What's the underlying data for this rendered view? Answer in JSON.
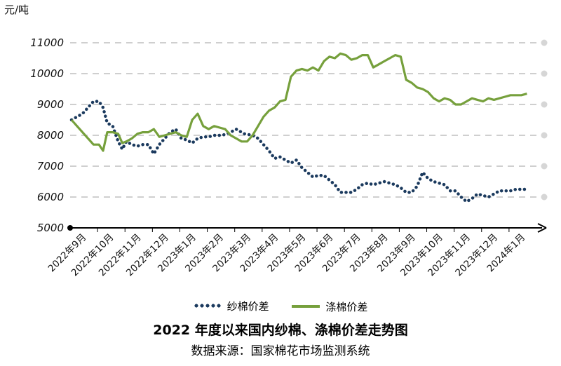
{
  "chart_data": {
    "type": "line",
    "title": "2022 年度以来国内纱棉、涤棉价差走势图",
    "source": "数据来源：国家棉花市场监测系统",
    "ylabel": "元/吨",
    "ylim": [
      5000,
      11000
    ],
    "yticks": [
      5000,
      6000,
      7000,
      8000,
      9000,
      10000,
      11000
    ],
    "grid": true,
    "legend_position": "bottom",
    "categories": [
      "2022年9月",
      "2022年10月",
      "2022年11月",
      "2022年12月",
      "2023年1月",
      "2023年2月",
      "2023年3月",
      "2023年4月",
      "2023年5月",
      "2023年6月",
      "2023年7月",
      "2023年8月",
      "2023年9月",
      "2023年10月",
      "2023年11月",
      "2023年12月",
      "2024年1月"
    ],
    "series": [
      {
        "name": "纱棉价差",
        "style": "dotted",
        "color": "#1b3a5e",
        "x": [
          0.0,
          0.2,
          0.4,
          0.6,
          0.8,
          1.0,
          1.15,
          1.3,
          1.5,
          1.7,
          1.85,
          2.0,
          2.2,
          2.4,
          2.6,
          2.8,
          3.0,
          3.2,
          3.4,
          3.6,
          3.8,
          4.0,
          4.2,
          4.4,
          4.6,
          4.8,
          5.0,
          5.2,
          5.5,
          5.8,
          6.0,
          6.3,
          6.6,
          6.8,
          7.0,
          7.2,
          7.4,
          7.6,
          7.8,
          8.0,
          8.2,
          8.4,
          8.6,
          8.8,
          9.0,
          9.2,
          9.4,
          9.6,
          9.8,
          10.0,
          10.2,
          10.4,
          10.6,
          10.8,
          11.0,
          11.2,
          11.4,
          11.6,
          11.8,
          12.0,
          12.2,
          12.4,
          12.6,
          12.8,
          13.0,
          13.2,
          13.4,
          13.6,
          13.8,
          14.0,
          14.2,
          14.4,
          14.6,
          14.8,
          15.0,
          15.2,
          15.4,
          15.6,
          15.8,
          16.0,
          16.2,
          16.4,
          16.6
        ],
        "values": [
          8500,
          8600,
          8700,
          8900,
          9100,
          9100,
          8900,
          8400,
          8300,
          7800,
          7550,
          7800,
          7700,
          7650,
          7700,
          7700,
          7400,
          7700,
          7900,
          8100,
          8200,
          7900,
          7850,
          7750,
          7900,
          7950,
          7950,
          8000,
          8000,
          8100,
          8200,
          8050,
          8000,
          7900,
          7700,
          7500,
          7250,
          7300,
          7200,
          7100,
          7200,
          6950,
          6800,
          6650,
          6700,
          6700,
          6550,
          6400,
          6150,
          6150,
          6150,
          6250,
          6400,
          6450,
          6400,
          6450,
          6500,
          6450,
          6400,
          6300,
          6150,
          6150,
          6350,
          6800,
          6600,
          6500,
          6450,
          6400,
          6200,
          6200,
          6000,
          5850,
          5950,
          6100,
          6050,
          6000,
          6100,
          6200,
          6200,
          6200,
          6250,
          6250,
          6250
        ]
      },
      {
        "name": "涤棉价差",
        "style": "solid",
        "color": "#76a03c",
        "x": [
          0.0,
          0.2,
          0.4,
          0.6,
          0.8,
          1.0,
          1.15,
          1.3,
          1.5,
          1.7,
          1.85,
          2.0,
          2.2,
          2.4,
          2.6,
          2.8,
          3.0,
          3.2,
          3.4,
          3.6,
          3.8,
          4.0,
          4.2,
          4.4,
          4.6,
          4.8,
          5.0,
          5.2,
          5.4,
          5.6,
          5.8,
          6.0,
          6.2,
          6.4,
          6.6,
          6.8,
          7.0,
          7.2,
          7.4,
          7.6,
          7.8,
          8.0,
          8.2,
          8.4,
          8.6,
          8.8,
          9.0,
          9.2,
          9.4,
          9.6,
          9.8,
          10.0,
          10.2,
          10.4,
          10.6,
          10.8,
          11.0,
          11.2,
          11.4,
          11.6,
          11.8,
          12.0,
          12.2,
          12.4,
          12.6,
          12.8,
          13.0,
          13.2,
          13.4,
          13.6,
          13.8,
          14.0,
          14.2,
          14.4,
          14.6,
          14.8,
          15.0,
          15.2,
          15.4,
          15.6,
          15.8,
          16.0,
          16.2,
          16.4,
          16.6
        ],
        "values": [
          8500,
          8300,
          8100,
          7900,
          7700,
          7700,
          7500,
          8100,
          8100,
          8050,
          7750,
          7800,
          7900,
          8050,
          8100,
          8100,
          8200,
          7950,
          8000,
          8050,
          8100,
          8000,
          7950,
          8500,
          8700,
          8300,
          8200,
          8300,
          8250,
          8200,
          8000,
          7900,
          7800,
          7800,
          8000,
          8300,
          8600,
          8800,
          8900,
          9100,
          9150,
          9900,
          10100,
          10150,
          10100,
          10200,
          10100,
          10400,
          10550,
          10500,
          10650,
          10600,
          10450,
          10500,
          10600,
          10600,
          10200,
          10300,
          10400,
          10500,
          10600,
          10550,
          9800,
          9700,
          9550,
          9500,
          9400,
          9200,
          9100,
          9200,
          9150,
          9000,
          9000,
          9100,
          9200,
          9150,
          9100,
          9200,
          9150,
          9200,
          9250,
          9300,
          9300,
          9300,
          9350
        ]
      }
    ]
  }
}
